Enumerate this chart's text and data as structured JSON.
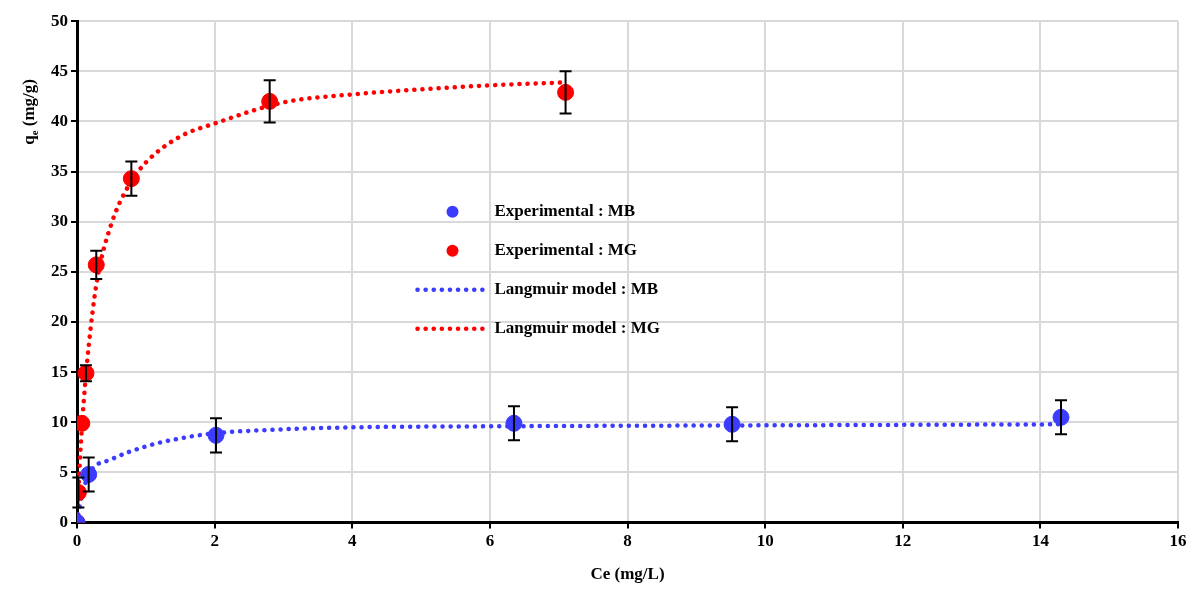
{
  "chart_data": {
    "type": "scatter",
    "xlabel": "Ce (mg/L)",
    "ylabel": "q$_{e}$ (mg/g)",
    "xlim": [
      0,
      16
    ],
    "ylim": [
      0,
      50
    ],
    "xticks": [
      0,
      2,
      4,
      6,
      8,
      10,
      12,
      14,
      16
    ],
    "yticks": [
      0,
      5,
      10,
      15,
      20,
      25,
      30,
      35,
      40,
      45,
      50
    ],
    "grid": true,
    "legend": "center",
    "series": [
      {
        "name": "Experimental : MB",
        "type": "scatter",
        "marker": "circle",
        "color": "#3c3cff",
        "x": [
          0,
          0.17,
          2.02,
          6.35,
          9.52,
          14.3
        ],
        "values": [
          0,
          4.8,
          8.7,
          9.9,
          9.8,
          10.5
        ],
        "errors": [
          null,
          1.7,
          1.7,
          1.7,
          1.7,
          1.7
        ]
      },
      {
        "name": "Experimental : MG",
        "type": "scatter",
        "marker": "circle",
        "color": "#ff0000",
        "x": [
          0,
          0.02,
          0.07,
          0.13,
          0.28,
          0.79,
          2.8,
          7.1
        ],
        "values": [
          0,
          3.0,
          9.9,
          14.9,
          25.7,
          34.3,
          42.0,
          42.9
        ],
        "errors": [
          null,
          1.5,
          null,
          0.8,
          1.4,
          1.7,
          2.1,
          2.1
        ]
      },
      {
        "name": "Langmuir model : MB",
        "type": "line",
        "marker": "none",
        "line_style": "dotted",
        "color": "#3c3cff",
        "x": [
          0,
          0.05,
          0.17,
          0.5,
          1,
          1.5,
          2,
          3,
          4,
          6,
          10,
          14.3
        ],
        "values": [
          0,
          2,
          4.8,
          6.3,
          7.6,
          8.4,
          8.9,
          9.3,
          9.5,
          9.6,
          9.7,
          9.8
        ]
      },
      {
        "name": "Langmuir model : MG",
        "type": "line",
        "marker": "none",
        "line_style": "dotted",
        "color": "#ff0000",
        "x": [
          0,
          0.02,
          0.05,
          0.1,
          0.2,
          0.3,
          0.5,
          0.75,
          1,
          1.5,
          2,
          3,
          4,
          5,
          6,
          7.1
        ],
        "values": [
          0,
          3.1,
          7.1,
          12.3,
          19.5,
          24.5,
          29.8,
          33.6,
          35.9,
          38.5,
          39.8,
          41.9,
          42.7,
          43.2,
          43.6,
          43.9
        ]
      }
    ]
  }
}
